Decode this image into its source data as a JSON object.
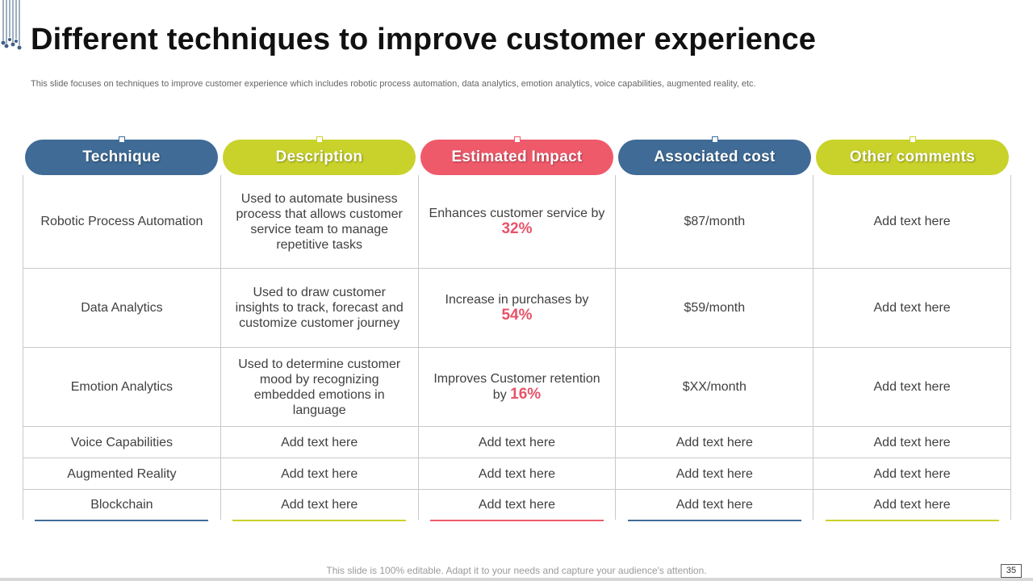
{
  "slide": {
    "title": "Different techniques to improve customer experience",
    "subtitle": "This slide focuses on techniques to improve customer experience which includes robotic process automation, data analytics, emotion analytics, voice capabilities, augmented reality, etc.",
    "footer": "This slide is 100% editable. Adapt it to your needs and capture your audience's attention.",
    "page_number": "35"
  },
  "colors": {
    "blue": "#3f6b96",
    "lime": "#c8d22a",
    "coral": "#ef5a6b",
    "highlight": "#e8536a"
  },
  "table": {
    "headers": [
      {
        "label": "Technique",
        "color": "#3f6b96"
      },
      {
        "label": "Description",
        "color": "#c8d22a"
      },
      {
        "label": "Estimated Impact",
        "color": "#ef5a6b"
      },
      {
        "label": "Associated cost",
        "color": "#3f6b96"
      },
      {
        "label": "Other comments",
        "color": "#c8d22a"
      }
    ],
    "rows": [
      {
        "technique": "Robotic Process Automation",
        "description": "Used to automate business process that allows customer service team to manage repetitive tasks",
        "impact_text": "Enhances customer service by",
        "impact_value": "32%",
        "cost": "$87/month",
        "comments": "Add text here"
      },
      {
        "technique": "Data Analytics",
        "description": "Used to draw customer insights to track, forecast and customize customer journey",
        "impact_text": "Increase in purchases by",
        "impact_value": "54%",
        "cost": "$59/month",
        "comments": "Add text here"
      },
      {
        "technique": "Emotion Analytics",
        "description": "Used to determine customer mood by recognizing embedded emotions in language",
        "impact_text": "Improves Customer retention by",
        "impact_value": "16%",
        "cost": "$XX/month",
        "comments": "Add text here"
      },
      {
        "technique": "Voice Capabilities",
        "description": "Add text here",
        "impact_text": "Add text here",
        "cost": "Add text here",
        "comments": "Add text here"
      },
      {
        "technique": "Augmented Reality",
        "description": "Add text here",
        "impact_text": "Add text here",
        "cost": "Add text here",
        "comments": "Add text here"
      },
      {
        "technique": "Blockchain",
        "description": "Add text here",
        "impact_text": "Add text here",
        "cost": "Add text here",
        "comments": "Add text here"
      }
    ]
  }
}
